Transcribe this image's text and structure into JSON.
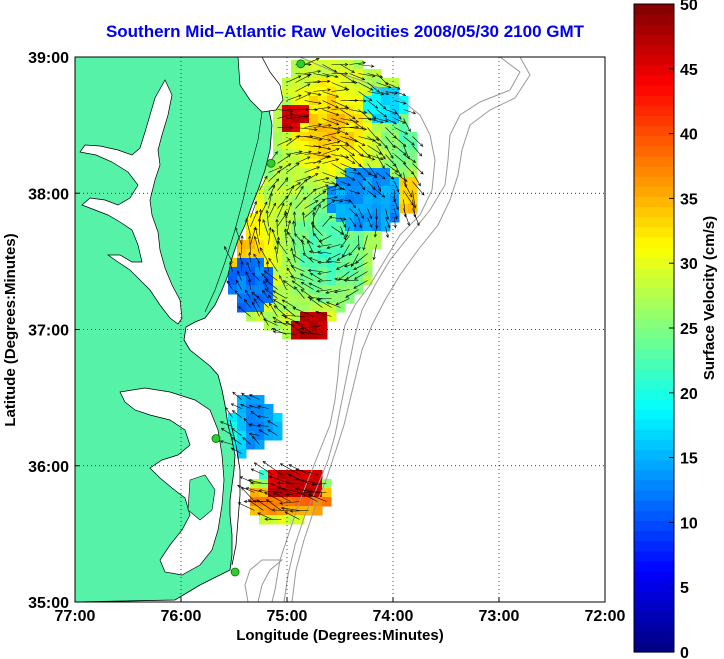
{
  "title": "Southern Mid–Atlantic Raw Velocities 2008/05/30 2100 GMT",
  "map": {
    "xlabel": "Longitude (Degrees:Minutes)",
    "ylabel": "Latitude (Degrees:Minutes)",
    "lon_range": [
      -77,
      -72
    ],
    "lat_range": [
      35,
      39
    ],
    "x_ticks": [
      {
        "value": -77,
        "label": "77:00"
      },
      {
        "value": -76,
        "label": "76:00"
      },
      {
        "value": -75,
        "label": "75:00"
      },
      {
        "value": -74,
        "label": "74:00"
      },
      {
        "value": -73,
        "label": "73:00"
      },
      {
        "value": -72,
        "label": "72:00"
      }
    ],
    "y_ticks": [
      {
        "value": 35,
        "label": "35:00"
      },
      {
        "value": 36,
        "label": "36:00"
      },
      {
        "value": 37,
        "label": "37:00"
      },
      {
        "value": 38,
        "label": "38:00"
      },
      {
        "value": 39,
        "label": "39:00"
      }
    ],
    "grid": "dotted",
    "land_color": "#55f2a8",
    "station_color": "#2ecc2e",
    "stations": [
      {
        "lon": -74.87,
        "lat": 38.95
      },
      {
        "lon": -75.15,
        "lat": 38.22
      },
      {
        "lon": -75.67,
        "lat": 36.2
      },
      {
        "lon": -75.49,
        "lat": 35.22
      }
    ]
  },
  "colorbar": {
    "label": "Surface Velocity (cm/s)",
    "range": [
      0,
      50
    ],
    "ticks": [
      {
        "value": 0,
        "label": "0"
      },
      {
        "value": 5,
        "label": "5"
      },
      {
        "value": 10,
        "label": "10"
      },
      {
        "value": 15,
        "label": "15"
      },
      {
        "value": 20,
        "label": "20"
      },
      {
        "value": 25,
        "label": "25"
      },
      {
        "value": 30,
        "label": "30"
      },
      {
        "value": 35,
        "label": "35"
      },
      {
        "value": 40,
        "label": "40"
      },
      {
        "value": 45,
        "label": "45"
      },
      {
        "value": 50,
        "label": "50"
      }
    ],
    "colormap": "jet"
  }
}
